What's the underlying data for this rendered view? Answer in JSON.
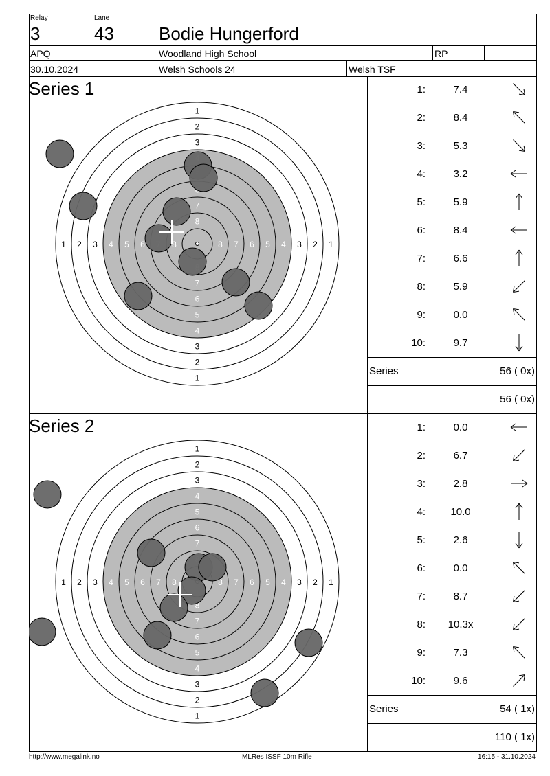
{
  "header": {
    "relay_label": "Relay",
    "relay_value": "3",
    "lane_label": "Lane",
    "lane_value": "43",
    "shooter_name": "Bodie Hungerford",
    "class": "APQ",
    "club": "Woodland High School",
    "rp": "RP",
    "rp_value": "",
    "date": "30.10.2024",
    "competition": "Welsh Schools 24",
    "organizer": "Welsh TSF"
  },
  "target": {
    "ring_labels": [
      "1",
      "2",
      "3",
      "4",
      "5",
      "6",
      "7",
      "8"
    ],
    "black_color": "#bbbbbb",
    "shot_color": "#666666"
  },
  "series": [
    {
      "title": "Series 1",
      "shots": [
        {
          "n": "1:",
          "v": "7.4",
          "arrow": "arrow-down-right-icon"
        },
        {
          "n": "2:",
          "v": "8.4",
          "arrow": "arrow-up-left-icon"
        },
        {
          "n": "3:",
          "v": "5.3",
          "arrow": "arrow-down-right-icon"
        },
        {
          "n": "4:",
          "v": "3.2",
          "arrow": "arrow-left-icon"
        },
        {
          "n": "5:",
          "v": "5.9",
          "arrow": "arrow-up-icon"
        },
        {
          "n": "6:",
          "v": "8.4",
          "arrow": "arrow-left-icon"
        },
        {
          "n": "7:",
          "v": "6.6",
          "arrow": "arrow-up-icon"
        },
        {
          "n": "8:",
          "v": "5.9",
          "arrow": "arrow-down-left-icon"
        },
        {
          "n": "9:",
          "v": "0.0",
          "arrow": "arrow-up-left-icon"
        },
        {
          "n": "10:",
          "v": "9.7",
          "arrow": "arrow-down-icon"
        }
      ],
      "series_label": "Series",
      "series_total": "56 ( 0x)",
      "running_total": "56 ( 0x)"
    },
    {
      "title": "Series 2",
      "shots": [
        {
          "n": "1:",
          "v": "0.0",
          "arrow": "arrow-left-icon"
        },
        {
          "n": "2:",
          "v": "6.7",
          "arrow": "arrow-down-left-icon"
        },
        {
          "n": "3:",
          "v": "2.8",
          "arrow": "arrow-right-icon"
        },
        {
          "n": "4:",
          "v": "10.0",
          "arrow": "arrow-up-icon"
        },
        {
          "n": "5:",
          "v": "2.6",
          "arrow": "arrow-down-icon"
        },
        {
          "n": "6:",
          "v": "0.0",
          "arrow": "arrow-up-left-icon"
        },
        {
          "n": "7:",
          "v": "8.7",
          "arrow": "arrow-down-left-icon"
        },
        {
          "n": "8:",
          "v": "10.3x",
          "arrow": "arrow-down-left-icon"
        },
        {
          "n": "9:",
          "v": "7.3",
          "arrow": "arrow-up-left-icon"
        },
        {
          "n": "10:",
          "v": "9.6",
          "arrow": "arrow-up-right-icon"
        }
      ],
      "series_label": "Series",
      "series_total": "54 ( 1x)",
      "running_total": "110 ( 1x)"
    }
  ],
  "footer": {
    "url": "http://www.megalink.no",
    "program": "MLRes ISSF 10m Rifle",
    "timestamp": "16:15 - 31.10.2024"
  }
}
